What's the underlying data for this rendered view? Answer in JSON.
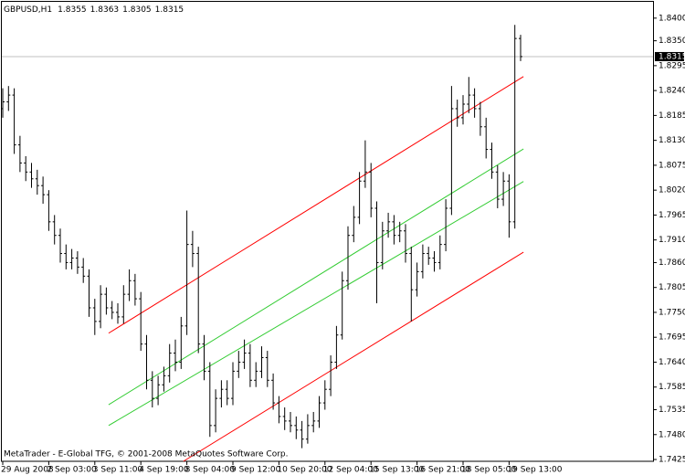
{
  "chart_data": {
    "type": "ohlc",
    "symbol": "GBPUSD,H1",
    "footer": "MetaTrader - E-Global TFG, © 2001-2008 MetaQuotes Software Corp.",
    "color": "#000000",
    "categories": [
      "29 Aug 2008",
      null,
      null,
      null,
      null,
      null,
      null,
      null,
      "2 Sep 03:00",
      null,
      null,
      null,
      null,
      null,
      null,
      null,
      "3 Sep 11:00",
      null,
      null,
      null,
      null,
      null,
      null,
      null,
      "4 Sep 19:00",
      null,
      null,
      null,
      null,
      null,
      null,
      null,
      "8 Sep 04:00",
      null,
      null,
      null,
      null,
      null,
      null,
      null,
      "9 Sep 12:00",
      null,
      null,
      null,
      null,
      null,
      null,
      null,
      "10 Sep 20:00",
      null,
      null,
      null,
      null,
      null,
      null,
      null,
      "12 Sep 04:00",
      null,
      null,
      null,
      null,
      null,
      null,
      null,
      "15 Sep 13:00",
      null,
      null,
      null,
      null,
      null,
      null,
      null,
      "16 Sep 21:00",
      null,
      null,
      null,
      null,
      null,
      null,
      null,
      "18 Sep 05:00",
      null,
      null,
      null,
      null,
      null,
      null,
      null,
      "19 Sep 13:00",
      null,
      null
    ],
    "open": [
      1.82,
      1.8215,
      1.823,
      1.812,
      1.808,
      1.806,
      1.8045,
      1.803,
      1.801,
      1.795,
      1.792,
      1.788,
      1.786,
      1.787,
      1.785,
      1.783,
      1.776,
      1.773,
      1.779,
      1.776,
      1.775,
      1.774,
      1.779,
      1.782,
      1.778,
      1.768,
      1.76,
      1.756,
      1.759,
      1.761,
      1.766,
      1.764,
      1.772,
      1.79,
      1.788,
      1.768,
      1.762,
      1.75,
      1.756,
      1.758,
      1.756,
      1.762,
      1.764,
      1.766,
      1.76,
      1.762,
      1.765,
      1.76,
      1.755,
      1.752,
      1.751,
      1.75,
      1.749,
      1.747,
      1.75,
      1.751,
      1.755,
      1.758,
      1.764,
      1.77,
      1.782,
      1.792,
      1.796,
      1.804,
      1.806,
      1.798,
      1.786,
      1.793,
      1.795,
      1.792,
      1.793,
      1.788,
      1.78,
      1.784,
      1.788,
      1.787,
      1.786,
      1.79,
      1.798,
      1.82,
      1.818,
      1.821,
      1.823,
      1.82,
      1.816,
      1.811,
      1.806,
      1.8,
      1.804,
      1.795,
      1.8355
    ],
    "high": [
      1.8245,
      1.825,
      1.8245,
      1.814,
      1.8095,
      1.808,
      1.8065,
      1.805,
      1.802,
      1.7965,
      1.7935,
      1.79,
      1.789,
      1.7885,
      1.787,
      1.7845,
      1.778,
      1.781,
      1.7805,
      1.7775,
      1.777,
      1.781,
      1.7845,
      1.7835,
      1.7795,
      1.77,
      1.762,
      1.761,
      1.763,
      1.768,
      1.769,
      1.774,
      1.7975,
      1.793,
      1.7895,
      1.77,
      1.764,
      1.758,
      1.76,
      1.76,
      1.764,
      1.7665,
      1.769,
      1.768,
      1.764,
      1.7675,
      1.7665,
      1.7615,
      1.7565,
      1.754,
      1.753,
      1.752,
      1.751,
      1.7525,
      1.753,
      1.7565,
      1.76,
      1.7655,
      1.772,
      1.784,
      1.794,
      1.7985,
      1.806,
      1.813,
      1.808,
      1.7995,
      1.795,
      1.797,
      1.7965,
      1.795,
      1.7945,
      1.7895,
      1.786,
      1.79,
      1.7895,
      1.7885,
      1.792,
      1.8,
      1.825,
      1.822,
      1.823,
      1.827,
      1.8245,
      1.8215,
      1.818,
      1.8125,
      1.8075,
      1.806,
      1.8055,
      1.8385,
      1.8363
    ],
    "low": [
      1.818,
      1.8195,
      1.81,
      1.806,
      1.804,
      1.8025,
      1.801,
      1.799,
      1.793,
      1.79,
      1.786,
      1.7845,
      1.7845,
      1.7835,
      1.7815,
      1.774,
      1.77,
      1.7715,
      1.7745,
      1.7735,
      1.7725,
      1.7725,
      1.7775,
      1.7765,
      1.7665,
      1.758,
      1.754,
      1.7545,
      1.7575,
      1.7595,
      1.762,
      1.7625,
      1.77,
      1.785,
      1.766,
      1.76,
      1.7475,
      1.7485,
      1.754,
      1.7545,
      1.7545,
      1.7605,
      1.7625,
      1.7585,
      1.7585,
      1.7605,
      1.7585,
      1.7535,
      1.7505,
      1.749,
      1.7485,
      1.747,
      1.745,
      1.746,
      1.7485,
      1.7495,
      1.7535,
      1.7565,
      1.7625,
      1.769,
      1.78,
      1.7905,
      1.7945,
      1.8025,
      1.796,
      1.777,
      1.7845,
      1.7915,
      1.79,
      1.7905,
      1.786,
      1.773,
      1.7785,
      1.7825,
      1.7855,
      1.784,
      1.7845,
      1.7885,
      1.7965,
      1.816,
      1.8165,
      1.819,
      1.818,
      1.814,
      1.809,
      1.8045,
      1.798,
      1.7985,
      1.7915,
      1.7935,
      1.8305
    ],
    "close": [
      1.8215,
      1.823,
      1.812,
      1.808,
      1.806,
      1.8045,
      1.803,
      1.801,
      1.795,
      1.792,
      1.788,
      1.786,
      1.787,
      1.785,
      1.783,
      1.776,
      1.773,
      1.779,
      1.776,
      1.775,
      1.774,
      1.779,
      1.782,
      1.778,
      1.768,
      1.76,
      1.756,
      1.759,
      1.761,
      1.766,
      1.764,
      1.772,
      1.79,
      1.788,
      1.768,
      1.762,
      1.75,
      1.756,
      1.758,
      1.756,
      1.762,
      1.764,
      1.766,
      1.76,
      1.762,
      1.765,
      1.76,
      1.755,
      1.752,
      1.751,
      1.75,
      1.749,
      1.747,
      1.75,
      1.751,
      1.755,
      1.758,
      1.764,
      1.77,
      1.782,
      1.792,
      1.796,
      1.804,
      1.806,
      1.798,
      1.786,
      1.793,
      1.795,
      1.792,
      1.793,
      1.788,
      1.78,
      1.784,
      1.788,
      1.787,
      1.786,
      1.79,
      1.798,
      1.82,
      1.818,
      1.821,
      1.823,
      1.82,
      1.816,
      1.811,
      1.806,
      1.8,
      1.804,
      1.795,
      1.8355,
      1.8315
    ],
    "channels": [
      {
        "color": "#ff0000",
        "from": [
          18.4,
          1.7704
        ],
        "to": [
          90.5,
          1.8271
        ]
      },
      {
        "color": "#33cc33",
        "from": [
          18.4,
          1.7546
        ],
        "to": [
          90.5,
          1.8111
        ]
      },
      {
        "color": "#33cc33",
        "from": [
          18.4,
          1.75
        ],
        "to": [
          90.5,
          1.8039
        ]
      },
      {
        "color": "#ff0000",
        "from": [
          31.4,
          1.7421
        ],
        "to": [
          90.5,
          1.7883
        ]
      }
    ],
    "ylim": [
      1.7421,
      1.8436
    ],
    "yticks": [
      {
        "value": 1.84,
        "label": "1.8400"
      },
      {
        "value": 1.835,
        "label": "1.8350"
      },
      1.8295,
      {
        "value": 1.824,
        "label": "1.8240"
      },
      1.8185,
      {
        "value": 1.813,
        "label": "1.8130"
      },
      1.8075,
      {
        "value": 1.802,
        "label": "1.8020"
      },
      1.7965,
      {
        "value": 1.791,
        "label": "1.7910"
      },
      {
        "value": 1.786,
        "label": "1.7860"
      },
      1.7805,
      {
        "value": 1.775,
        "label": "1.7750"
      },
      1.7695,
      {
        "value": 1.764,
        "label": "1.7640"
      },
      1.7585,
      1.7535,
      {
        "value": 1.748,
        "label": "1.7480"
      },
      1.7425
    ]
  }
}
